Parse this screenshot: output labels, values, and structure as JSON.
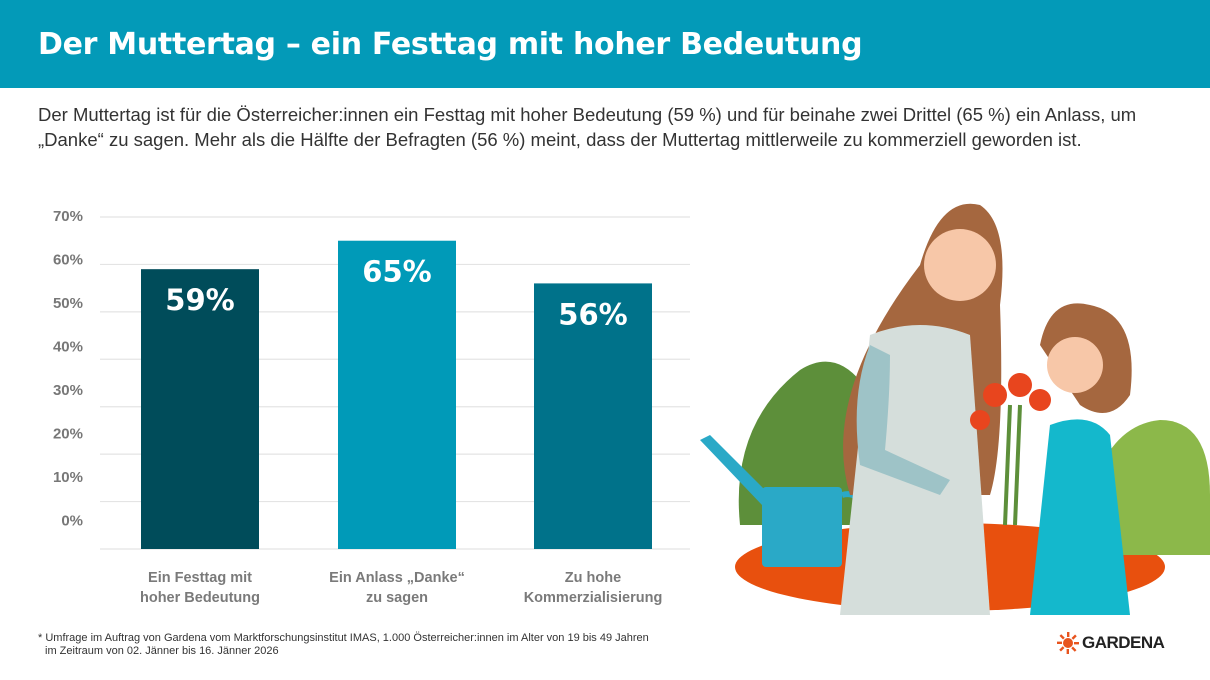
{
  "header": {
    "title": "Der Muttertag – ein Festtag mit hoher Bedeutung"
  },
  "intro": "Der Muttertag ist für die Österreicher:innen ein Festtag mit hoher Bedeutung (59 %) und für beinahe zwei Drittel (65 %) ein Anlass, um „Danke“ zu sagen. Mehr als die Hälfte der Befragten (56 %) meint, dass der Muttertag mittlerweile zu kommerziell geworden ist.",
  "chart_data": {
    "type": "bar",
    "categories": [
      [
        "Ein Festtag mit",
        "hoher Bedeutung"
      ],
      [
        "Ein Anlass „Danke“",
        "zu sagen"
      ],
      [
        "Zu hohe",
        "Kommerzialisierung"
      ]
    ],
    "values": [
      59,
      65,
      56
    ],
    "data_labels": [
      "59%",
      "65%",
      "56%"
    ],
    "colors": [
      "#004c5a",
      "#009ab8",
      "#00728a"
    ],
    "yticks": [
      "0%",
      "10%",
      "20%",
      "30%",
      "40%",
      "50%",
      "60%",
      "70%"
    ],
    "ylim": [
      0,
      70
    ],
    "grid": true,
    "title": "",
    "xlabel": "",
    "ylabel": ""
  },
  "footnote": [
    "* Umfrage im Auftrag von Gardena vom Marktforschungsinstitut IMAS, 1.000 Österreicher:innen im Alter von 19 bis 49 Jahren",
    "im Zeitraum von 02. Jänner bis 16. Jänner 2026"
  ],
  "logo": {
    "text": "GARDENA",
    "color": "#e8541e"
  },
  "colors": {
    "header": "#039ab8"
  }
}
